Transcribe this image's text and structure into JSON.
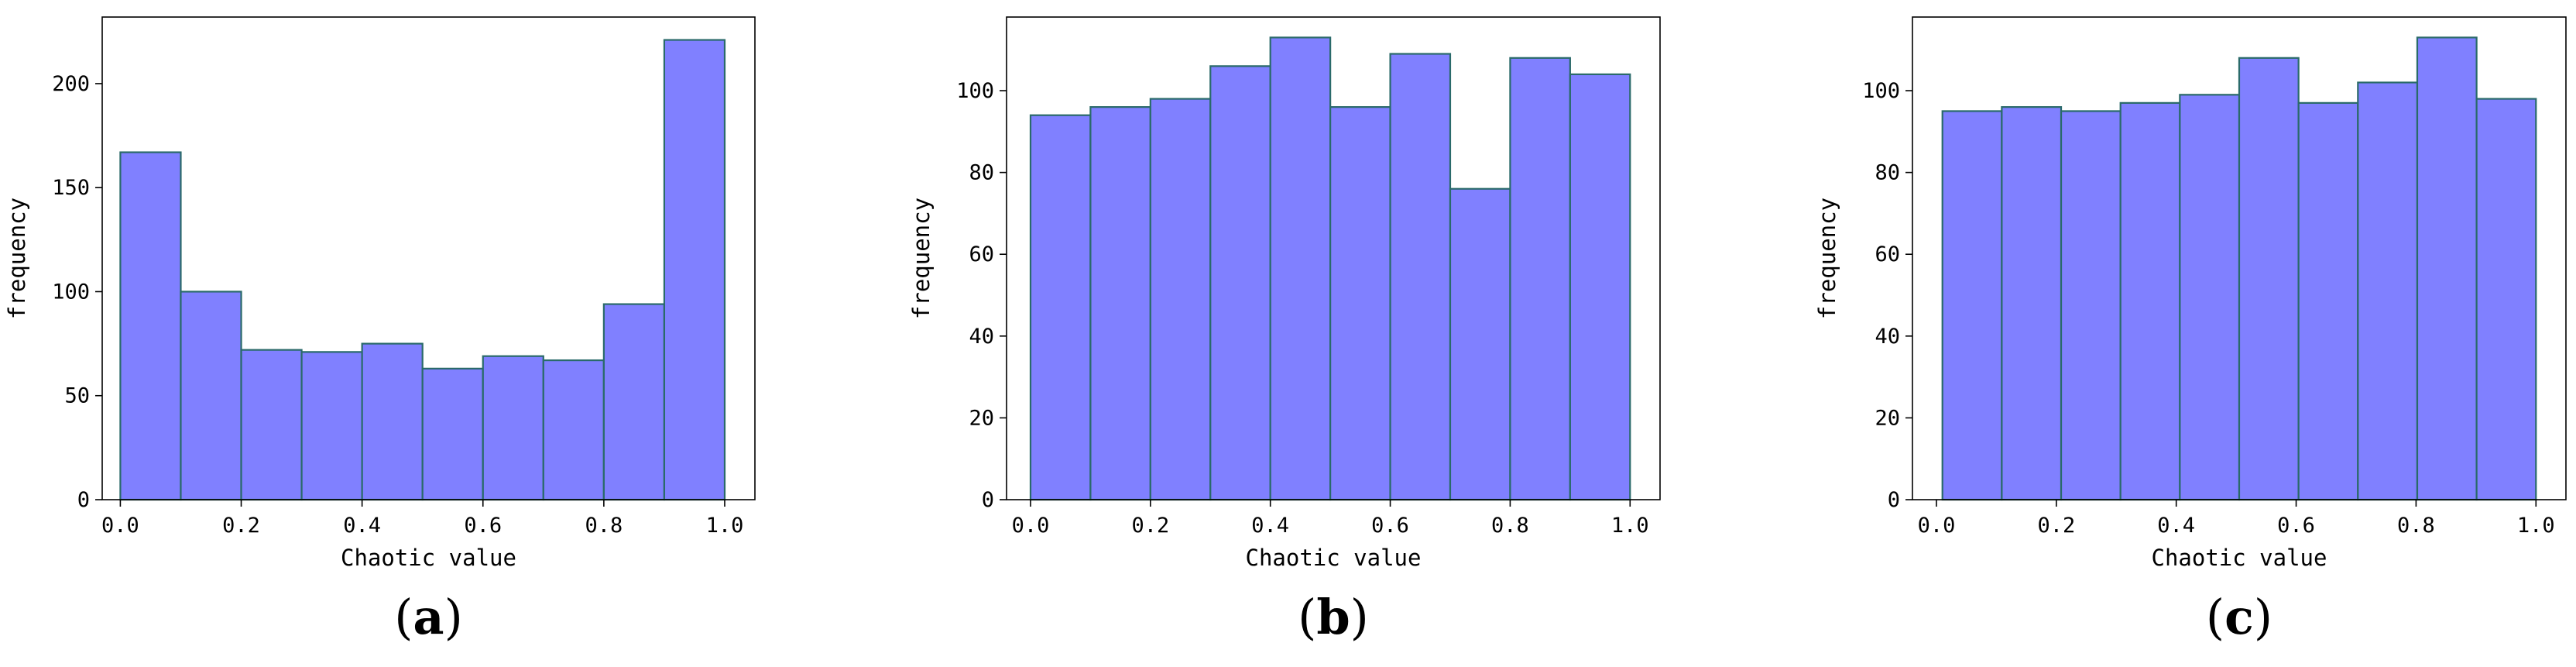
{
  "chart_data": [
    {
      "type": "bar",
      "panel_label": "(a)",
      "panel_letter": "a",
      "xlabel": "Chaotic value",
      "ylabel": "frequency",
      "bin_edges": [
        0.0,
        0.1,
        0.2,
        0.3,
        0.4,
        0.5,
        0.6,
        0.7,
        0.8,
        0.9,
        1.0
      ],
      "values": [
        167,
        100,
        72,
        71,
        75,
        63,
        69,
        67,
        94,
        221
      ],
      "xlim": [
        -0.03,
        1.05
      ],
      "ylim": [
        0,
        232
      ],
      "xticks": [
        0.0,
        0.2,
        0.4,
        0.6,
        0.8,
        1.0
      ],
      "xtick_labels": [
        "0.0",
        "0.2",
        "0.4",
        "0.6",
        "0.8",
        "1.0"
      ],
      "yticks": [
        0,
        50,
        100,
        150,
        200
      ],
      "ytick_labels": [
        "0",
        "50",
        "100",
        "150",
        "200"
      ],
      "grid": false
    },
    {
      "type": "bar",
      "panel_label": "(b)",
      "panel_letter": "b",
      "xlabel": "Chaotic value",
      "ylabel": "frequency",
      "bin_edges": [
        0.0,
        0.1,
        0.2,
        0.3,
        0.4,
        0.5,
        0.6,
        0.7,
        0.8,
        0.9,
        1.0
      ],
      "values": [
        94,
        96,
        98,
        106,
        113,
        96,
        109,
        76,
        108,
        104
      ],
      "xlim": [
        -0.04,
        1.05
      ],
      "ylim": [
        0,
        118
      ],
      "xticks": [
        0.0,
        0.2,
        0.4,
        0.6,
        0.8,
        1.0
      ],
      "xtick_labels": [
        "0.0",
        "0.2",
        "0.4",
        "0.6",
        "0.8",
        "1.0"
      ],
      "yticks": [
        0,
        20,
        40,
        60,
        80,
        100
      ],
      "ytick_labels": [
        "0",
        "20",
        "40",
        "60",
        "80",
        "100"
      ],
      "grid": false
    },
    {
      "type": "bar",
      "panel_label": "(c)",
      "panel_letter": "c",
      "xlabel": "Chaotic value",
      "ylabel": "frequency",
      "bin_edges": [
        0.01,
        0.109,
        0.208,
        0.307,
        0.406,
        0.505,
        0.604,
        0.703,
        0.802,
        0.901,
        1.0
      ],
      "values": [
        95,
        96,
        95,
        97,
        99,
        108,
        97,
        102,
        113,
        98
      ],
      "xlim": [
        -0.04,
        1.05
      ],
      "ylim": [
        0,
        118
      ],
      "xticks": [
        0.0,
        0.2,
        0.4,
        0.6,
        0.8,
        1.0
      ],
      "xtick_labels": [
        "0.0",
        "0.2",
        "0.4",
        "0.6",
        "0.8",
        "1.0"
      ],
      "yticks": [
        0,
        20,
        40,
        60,
        80,
        100
      ],
      "ytick_labels": [
        "0",
        "20",
        "40",
        "60",
        "80",
        "100"
      ],
      "grid": false
    }
  ],
  "colors": {
    "bar_fill": "#8080ff",
    "bar_edge": "#2a6a6a",
    "axis": "#000000"
  }
}
